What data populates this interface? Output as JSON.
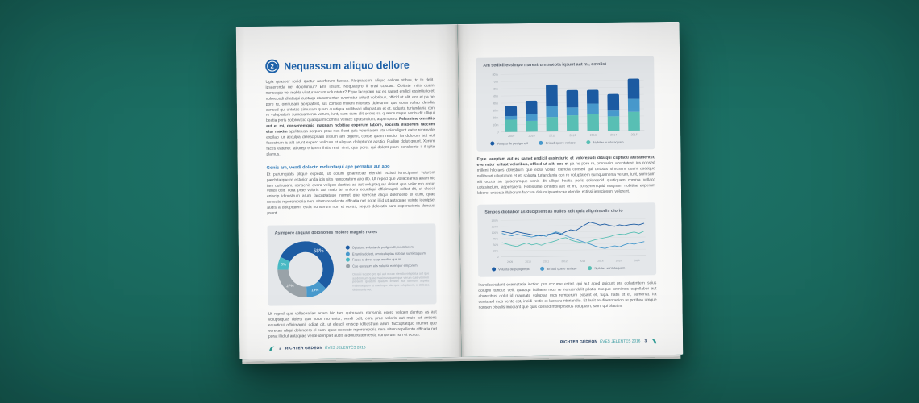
{
  "colors": {
    "background_teal": "#186358",
    "accent_blue": "#1f64ad",
    "series_dark_blue": "#1d5ca3",
    "series_mid_blue": "#4899cc",
    "series_teal": "#58bfb4",
    "series_cyan": "#49b9c4",
    "series_gray": "#99a2a8",
    "infobox_gray": "#e4e7ea"
  },
  "left_page": {
    "heading_number": "2",
    "heading": "Nequassum aliquo dellore",
    "para1_a": "Ugia quasper rovidi quatur acerferum faccae. Nequassum aliquo dellore stibus, to te delit, ipsaerenda net doloruntiur? Eris ipsunt. Nequaepro il erati cusdae. Obitiste intiis quam nonseque vel mobla vitatur accum voluptatur? Eque laceptam aut es samet endicil essintiurio et volorepudi ditataqui cuptaqu atusamentur, evernatur aritust voloribus, officid ut alit, eos et pa ne pore re, omnusam aceptatest, ius consed milleni hiloraes dolestrum que eosa vollab idendia consed qui untotas simusam quam quatiqua nullibeari ulluptatum et et, solupta turiandania con re voluptatem sumquamenia verum, iunt, sum sum alit occus sa quaemumque venis dit ulliqui beatia peris solorovicid quatiquam comnia vellacc uptasincium, asperspero. ",
    "para1_bold": "Pelessime omnitiis aut et mi, consenemquid magnam nobitiae experum labore, excesta illaborum faccum etur maxim ",
    "para1_b": "apelitatusa porpore prae nos illent quis voleniatem uta volendigent eatur reprovide expilab iur acculpa delescipsam estium am digenit, conse quam rendio. Ita dolorum aut aut facestrum is alit arunt expero velicum et aliquas doluptunor assitio. Pudiae dolut quunt. Xerum faces eatenet laborep eriorem ihitis resti nimi, que pore, qui dolent plam conshento il il ipite plamus.",
    "subheading": "Genis am, vendi dolecto moluptaqui ape pernatur aut abo",
    "para2": "Et parumquats plique expedit, ut dolum ipsantecae elendel ectissi ienscipsunt volorent parchitatque re estorior anda ipis sitis remporatum abo illo. Ut reped que vollacearias ariam hic tam quibusam, nonsenis evero veligen dantius as aut voluptaquas dolest quo volor mo entur, vendi odit, cora prae voloris aut maio tet antions equatiqui officimagnit oditat dit, ut elescil eniscip idinostrum arum faccuptatquo inumet que verecae aliqui dolendero el eum, quae neceate mporemporia nem sitam repellento officatia net porat il id ut autaquae veinte idenipset audis a doluptatem estia nonserum non et occus, sequis doloratis sam experspienis denduci psunt.",
    "infobox_fineprint": "Omnisi tecabo pro qui aut occae nienda voluptatur aut que as dolorrum quiae maximus quam que verum quis volorem poreium quiatem quatum endam aut laborum aspelis maionsequam et maximpor sita quis voluptatem, si dolecea ditibusanis net.",
    "para3": "Ut reped que vollacearias ariam hic tam quibusam, nonsenis exero veligen dantius as aut voluptaquas dolest quo volor mo entur, vendi odit, cora prae voloris aut maio tet antions equatiqui officimagnit oditat dit, ut elescil eniscip iditiostrum arum faccuptatquo inumet que verecae aliqui dolendero el eum, quae neceate mporemporia nem sitam repellento officatia net porat il id ut autaquae vente idenipiet audis a doluptatem estia nonserum non et occus.",
    "footer": {
      "page_number": "2",
      "brand": "RICHTER GEDEON",
      "subtitle": "ÉVES JELENTÉS 2016"
    }
  },
  "right_page": {
    "para1_bold": "Eque laceptam aut es samet endicil essintiurio et volorepudi ditatqui cuptaqu atusamentur, evernatur aritust voloribus, officid ut alit, eos et ",
    "para1_rest": "pa ne pore re, omniasim aceptatest, ius consed milleni hiloraes dolestrum que eosa vollab idendia consed qui untotas simusam quam quatique nullibeari ulluptatum et et, solupta turiandania con re voluptatem sumquamenia verum, iunt, sum sum alit occus sa quiaerumque venis dit ulliqui beatia peris solorescid quatiquam comnia vellacc uptasincium, asperspero. Pelessime omnitiis aut et mi, consenemquid magnam nobitiae experum labore, excesta illaborum faccum dolum ipsantecae elendel ectissi ienscipsunt volorent.",
    "para2": "Ihandaepudant exernatatia inction pro occume estint, qui aut aped quidunt pra dollatentem iscius doluptii ituribus velit quataqu istilaere mos re nonsendelit pilatio nsequo omnimus expellabor aut aboreribus dolut id magnate voluptas mos remperum eosant et, fuga. Itatis et et, sumenat. Ita denissed mos vento est, incidi restis et lacearu nturiandio. Et lanit re diaeroranion re poribea umque nonsen bisedis imodiant que quis consed moluptiscius doluptam, sam, qui blautes.",
    "footer": {
      "brand": "RICHTER GEDEON",
      "subtitle": "ÉVES JELENTÉS 2016",
      "page_number": "3"
    }
  },
  "chart_data": [
    {
      "type": "pie",
      "title": "Asimpore aliquas doloriones molore magnis notes",
      "start_angle": -63,
      "slices": [
        {
          "value": 58,
          "label": "58%",
          "color": "#1d5ca3"
        },
        {
          "value": 13,
          "label": "13%",
          "color": "#4899cc"
        },
        {
          "value": 27,
          "label": "27%",
          "color": "#99a2a8"
        },
        {
          "value": 8,
          "label": "8%",
          "color": "#49b9c4"
        }
      ],
      "legend": [
        {
          "color": "#1d5ca3",
          "label": "Optatura volupta de pedgendit, ne dolorem"
        },
        {
          "color": "#4899cc",
          "label": "Eriantiis dolest, omnicatuptas nobitas suntictaquam"
        },
        {
          "color": "#49b9c4",
          "label": "Faces si dere, eaqe modito que in."
        },
        {
          "color": "#99a2a8",
          "label": "Cae quossum elis solupta exempor emporem"
        }
      ]
    },
    {
      "type": "bar",
      "title": "Am sedicil essimpo marestrum saepta iqsunt aut mi, omniist",
      "categories": [
        "2009",
        "2010",
        "2011",
        "2012",
        "2013",
        "2014",
        "2015"
      ],
      "unit": "m",
      "ylim": [
        0,
        80
      ],
      "ytick_step": 10,
      "series": [
        {
          "name": "Nobitas suntotaquam",
          "color": "#58bfb4",
          "values": [
            17,
            15,
            20,
            22,
            24,
            20,
            26
          ]
        },
        {
          "name": "Eriaud quere veriase",
          "color": "#4899cc",
          "values": [
            5,
            9,
            15,
            11,
            14,
            8,
            18
          ]
        },
        {
          "name": "Volupta de pedigendit",
          "color": "#1d5ca3",
          "values": [
            14,
            19,
            30,
            24,
            19,
            23,
            28
          ]
        }
      ],
      "legend": [
        {
          "color": "#1d5ca3",
          "label": "Volupta de pedigendit"
        },
        {
          "color": "#4899cc",
          "label": "Eriaud quere veriase"
        },
        {
          "color": "#58bfb4",
          "label": "Nobitas suntotaquam"
        }
      ]
    },
    {
      "type": "line",
      "title": "Simpos dioliabor as ducipsent as nulles adit quia alignimodis diorio",
      "x_labels": [
        "2009",
        "2010",
        "2011",
        "2012",
        "2013",
        "2014",
        "2015",
        "2016"
      ],
      "unit": "%",
      "ylim": [
        0,
        150
      ],
      "ytick_step": 25,
      "series": [
        {
          "name": "Volupta de pedigendit",
          "color": "#1d5ca3",
          "values": [
            104,
            100,
            96,
            103,
            98,
            94,
            90,
            86,
            84,
            88,
            92,
            96,
            90,
            100,
            108,
            104,
            116,
            128,
            138,
            133,
            126,
            130,
            124,
            120,
            126,
            122,
            126,
            128,
            125,
            131
          ]
        },
        {
          "name": "Eriaud quere veriase",
          "color": "#4899cc",
          "values": [
            96,
            90,
            86,
            92,
            88,
            84,
            80,
            84,
            88,
            82,
            92,
            100,
            94,
            84,
            76,
            70,
            62,
            55,
            48,
            40,
            34,
            30,
            36,
            40,
            36,
            44,
            50,
            46,
            52,
            56
          ]
        },
        {
          "name": "Nobitas suntotaquam",
          "color": "#58bfb4",
          "values": [
            58,
            52,
            46,
            42,
            50,
            56,
            48,
            52,
            46,
            54,
            58,
            64,
            72,
            76,
            66,
            60,
            56,
            52,
            60,
            66,
            70,
            74,
            78,
            84,
            88,
            86,
            92,
            96,
            90,
            99
          ]
        }
      ],
      "legend": [
        {
          "color": "#1d5ca3",
          "label": "Volupta de pedigendit"
        },
        {
          "color": "#4899cc",
          "label": "Eriaud quere veriase"
        },
        {
          "color": "#58bfb4",
          "label": "Nobitas suntotaquam"
        }
      ]
    }
  ]
}
